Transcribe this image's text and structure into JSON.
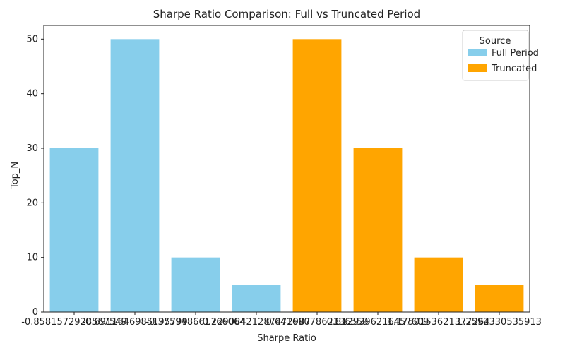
{
  "chart_data": {
    "type": "bar",
    "title": "Sharpe Ratio Comparison: Full vs Truncated Period",
    "xlabel": "Sharpe Ratio",
    "ylabel": "Top_N",
    "ylim": [
      0,
      52.5
    ],
    "yticks": [
      0,
      10,
      20,
      30,
      40,
      50
    ],
    "categories": [
      "-0.8581572928567549",
      "-0.6911646985195799",
      "-0.375948661766064",
      "0.22908421287472987",
      "0.6416907862136559",
      "0.8129396216457609",
      "1.1750153621377264",
      "1.2592330535913"
    ],
    "values": [
      30,
      50,
      10,
      5,
      50,
      30,
      10,
      5
    ],
    "source": [
      "Full Period",
      "Full Period",
      "Full Period",
      "Full Period",
      "Truncated",
      "Truncated",
      "Truncated",
      "Truncated"
    ],
    "series": [
      {
        "name": "Full Period",
        "color": "#87CEEB"
      },
      {
        "name": "Truncated",
        "color": "#FFA500"
      }
    ],
    "legend": {
      "title": "Source",
      "placement": "top-right"
    }
  }
}
